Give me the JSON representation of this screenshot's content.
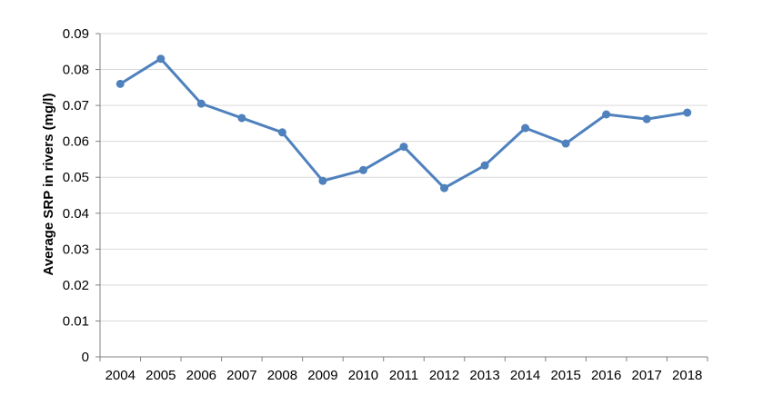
{
  "chart_data": {
    "type": "line",
    "title": "",
    "xlabel": "",
    "ylabel": "Average SRP in rivers (mg/l)",
    "categories": [
      "2004",
      "2005",
      "2006",
      "2007",
      "2008",
      "2009",
      "2010",
      "2011",
      "2012",
      "2013",
      "2014",
      "2015",
      "2016",
      "2017",
      "2018"
    ],
    "series": [
      {
        "values": [
          0.076,
          0.083,
          0.0705,
          0.0665,
          0.0625,
          0.049,
          0.052,
          0.0585,
          0.047,
          0.0533,
          0.0637,
          0.0594,
          0.0675,
          0.0662,
          0.068
        ]
      }
    ],
    "yticks": [
      "0",
      "0.01",
      "0.02",
      "0.03",
      "0.04",
      "0.05",
      "0.06",
      "0.07",
      "0.08",
      "0.09"
    ],
    "ylim": [
      0,
      0.09
    ],
    "grid": true,
    "legend": "none",
    "colors": {
      "line": "#4f81bd",
      "grid": "#d9d9d9",
      "axis": "#808080"
    }
  }
}
